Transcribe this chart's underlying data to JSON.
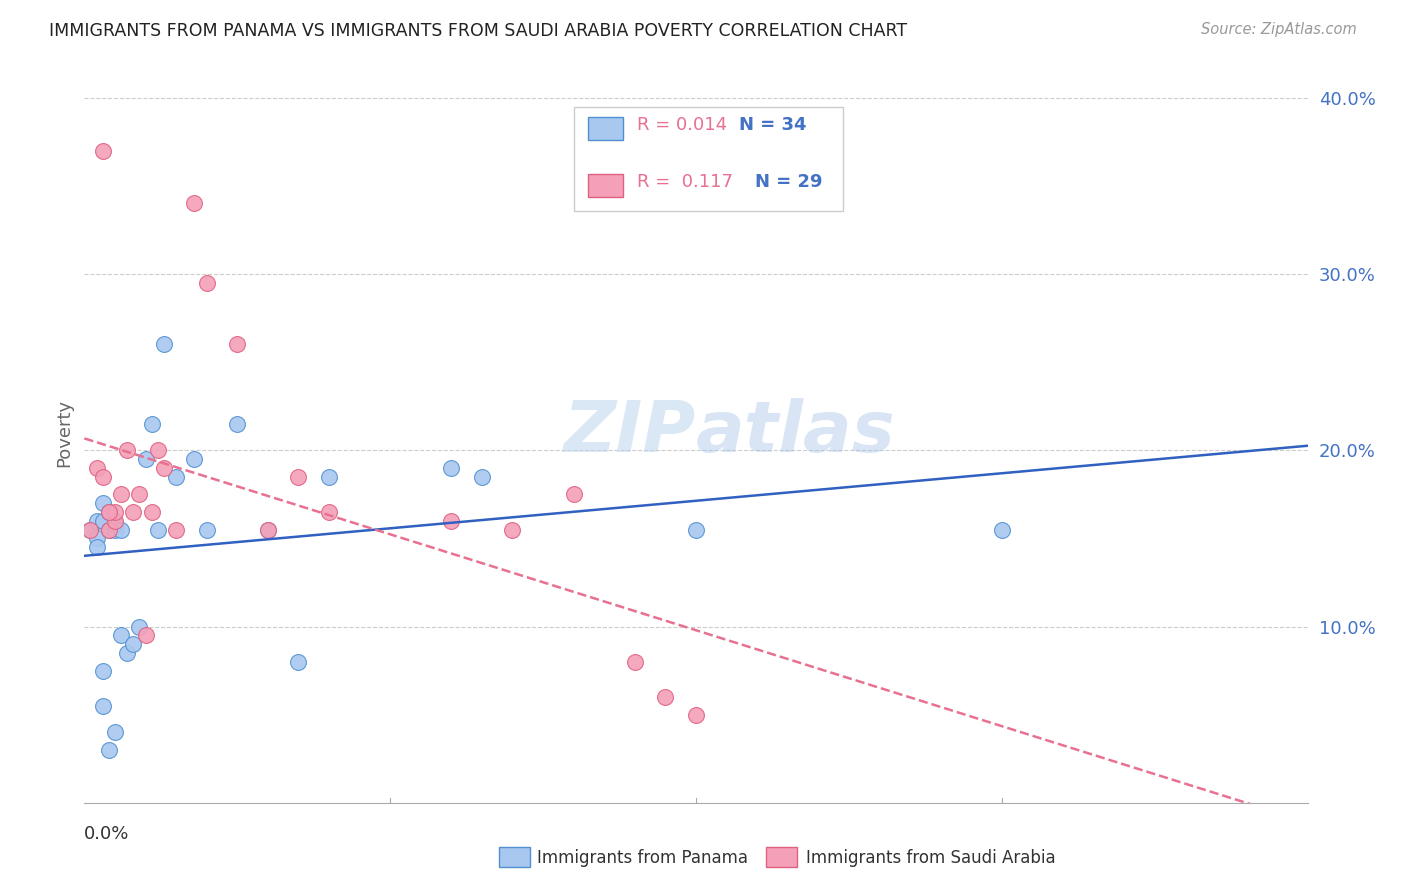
{
  "title": "IMMIGRANTS FROM PANAMA VS IMMIGRANTS FROM SAUDI ARABIA POVERTY CORRELATION CHART",
  "source": "Source: ZipAtlas.com",
  "ylabel": "Poverty",
  "x_min": 0.0,
  "x_max": 0.2,
  "y_min": 0.0,
  "y_max": 0.42,
  "y_ticks": [
    0.1,
    0.2,
    0.3,
    0.4
  ],
  "y_tick_labels": [
    "10.0%",
    "20.0%",
    "30.0%",
    "40.0%"
  ],
  "watermark": "ZIPatlas",
  "panama_color": "#A8C8F0",
  "saudi_color": "#F4A0B8",
  "panama_edge_color": "#5090D0",
  "saudi_edge_color": "#E06080",
  "panama_line_color": "#3060C0",
  "saudi_line_color": "#E87090",
  "grid_color": "#CCCCCC",
  "axis_color": "#AAAAAA",
  "right_tick_color": "#4472C4",
  "background_color": "#FFFFFF",
  "panama_x": [
    0.001,
    0.002,
    0.002,
    0.003,
    0.003,
    0.004,
    0.004,
    0.005,
    0.005,
    0.006,
    0.006,
    0.007,
    0.008,
    0.009,
    0.01,
    0.011,
    0.012,
    0.013,
    0.015,
    0.018,
    0.02,
    0.025,
    0.03,
    0.035,
    0.04,
    0.06,
    0.065,
    0.1,
    0.15,
    0.003,
    0.003,
    0.004,
    0.005,
    0.002
  ],
  "panama_y": [
    0.155,
    0.15,
    0.16,
    0.17,
    0.16,
    0.155,
    0.165,
    0.155,
    0.158,
    0.095,
    0.155,
    0.085,
    0.09,
    0.1,
    0.195,
    0.215,
    0.155,
    0.26,
    0.185,
    0.195,
    0.155,
    0.215,
    0.155,
    0.08,
    0.185,
    0.19,
    0.185,
    0.155,
    0.155,
    0.075,
    0.055,
    0.03,
    0.04,
    0.145
  ],
  "saudi_x": [
    0.001,
    0.002,
    0.003,
    0.004,
    0.005,
    0.005,
    0.006,
    0.007,
    0.008,
    0.009,
    0.01,
    0.011,
    0.012,
    0.013,
    0.015,
    0.018,
    0.02,
    0.025,
    0.03,
    0.035,
    0.04,
    0.06,
    0.07,
    0.08,
    0.09,
    0.095,
    0.1,
    0.003,
    0.004
  ],
  "saudi_y": [
    0.155,
    0.19,
    0.185,
    0.155,
    0.16,
    0.165,
    0.175,
    0.2,
    0.165,
    0.175,
    0.095,
    0.165,
    0.2,
    0.19,
    0.155,
    0.34,
    0.295,
    0.26,
    0.155,
    0.185,
    0.165,
    0.16,
    0.155,
    0.175,
    0.08,
    0.06,
    0.05,
    0.37,
    0.165
  ]
}
